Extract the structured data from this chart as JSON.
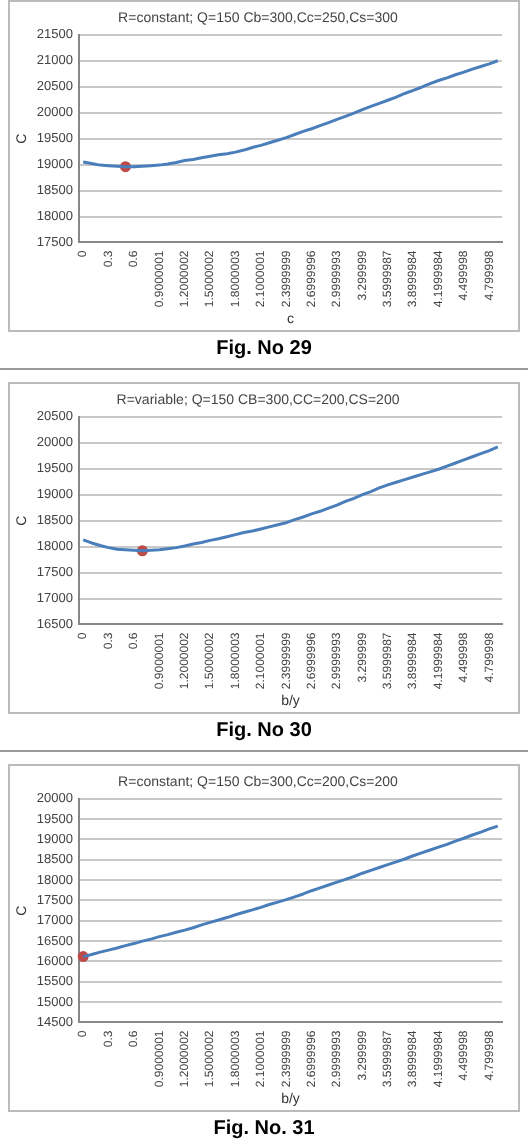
{
  "chart_data": [
    {
      "type": "line",
      "title": "R=constant; Q=150 Cb=300,Cc=250,Cs=300",
      "xlabel": "c",
      "ylabel": "C",
      "annotations": [
        "Fig. No 29"
      ],
      "categories": [
        "0",
        null,
        null,
        "0.3",
        null,
        null,
        "0.6",
        null,
        null,
        "0.9000001",
        null,
        null,
        "1.2000002",
        null,
        null,
        "1.5000002",
        null,
        null,
        "1.8000003",
        null,
        null,
        "2.1000001",
        null,
        null,
        "2.3999999",
        null,
        null,
        "2.6999996",
        null,
        null,
        "2.9999993",
        null,
        null,
        "3.299999",
        null,
        null,
        "3.5999987",
        null,
        null,
        "3.8999984",
        null,
        null,
        "4.1999984",
        null,
        null,
        "4.499998",
        null,
        null,
        "4.799998",
        null
      ],
      "series": [
        {
          "color": "#4a7ebb",
          "marker": "none",
          "values": [
            19050,
            19020,
            18990,
            18980,
            18970,
            18960,
            18960,
            18970,
            18980,
            18990,
            19010,
            19040,
            19080,
            19100,
            19130,
            19160,
            19190,
            19210,
            19240,
            19280,
            19330,
            19370,
            19420,
            19470,
            19520,
            19580,
            19640,
            19690,
            19750,
            19810,
            19870,
            19930,
            19990,
            20060,
            20120,
            20180,
            20240,
            20300,
            20370,
            20430,
            20490,
            20560,
            20620,
            20670,
            20730,
            20780,
            20840,
            20890,
            20940,
            21000
          ]
        },
        {
          "color": "#be4b48",
          "marker": "circle",
          "values": [
            null,
            null,
            null,
            null,
            null,
            18960,
            null,
            null,
            null,
            null,
            null,
            null,
            null,
            null,
            null,
            null,
            null,
            null,
            null,
            null,
            null,
            null,
            null,
            null,
            null,
            null,
            null,
            null,
            null,
            null,
            null,
            null,
            null,
            null,
            null,
            null,
            null,
            null,
            null,
            null,
            null,
            null,
            null,
            null,
            null,
            null,
            null,
            null,
            null,
            null
          ]
        }
      ],
      "ylim": [
        17500,
        21500
      ],
      "yticks": [
        17500,
        18000,
        18500,
        19000,
        19500,
        20000,
        20500,
        21000,
        21500
      ],
      "grid": "y",
      "legend": false
    },
    {
      "type": "line",
      "title": "R=variable; Q=150 CB=300,CC=200,CS=200",
      "xlabel": "b/y",
      "ylabel": "C",
      "annotations": [
        "Fig. No 30"
      ],
      "categories": [
        "0",
        null,
        null,
        "0.3",
        null,
        null,
        "0.6",
        null,
        null,
        "0.9000001",
        null,
        null,
        "1.2000002",
        null,
        null,
        "1.5000002",
        null,
        null,
        "1.8000003",
        null,
        null,
        "2.1000001",
        null,
        null,
        "2.3999999",
        null,
        null,
        "2.6999996",
        null,
        null,
        "2.9999993",
        null,
        null,
        "3.299999",
        null,
        null,
        "3.5999987",
        null,
        null,
        "3.8999984",
        null,
        null,
        "4.1999984",
        null,
        null,
        "4.499998",
        null,
        null,
        "4.799998",
        null
      ],
      "series": [
        {
          "color": "#4a7ebb",
          "marker": "none",
          "values": [
            18130,
            18070,
            18020,
            17980,
            17950,
            17940,
            17930,
            17920,
            17930,
            17940,
            17960,
            17980,
            18010,
            18050,
            18080,
            18120,
            18150,
            18190,
            18230,
            18270,
            18300,
            18340,
            18380,
            18420,
            18460,
            18520,
            18570,
            18630,
            18680,
            18740,
            18800,
            18870,
            18930,
            19000,
            19060,
            19130,
            19190,
            19240,
            19290,
            19340,
            19390,
            19440,
            19490,
            19550,
            19610,
            19670,
            19730,
            19790,
            19850,
            19920
          ]
        },
        {
          "color": "#be4b48",
          "marker": "circle",
          "values": [
            null,
            null,
            null,
            null,
            null,
            null,
            null,
            17920,
            null,
            null,
            null,
            null,
            null,
            null,
            null,
            null,
            null,
            null,
            null,
            null,
            null,
            null,
            null,
            null,
            null,
            null,
            null,
            null,
            null,
            null,
            null,
            null,
            null,
            null,
            null,
            null,
            null,
            null,
            null,
            null,
            null,
            null,
            null,
            null,
            null,
            null,
            null,
            null,
            null,
            null
          ]
        }
      ],
      "ylim": [
        16500,
        20500
      ],
      "yticks": [
        16500,
        17000,
        17500,
        18000,
        18500,
        19000,
        19500,
        20000,
        20500
      ],
      "grid": "y",
      "legend": false
    },
    {
      "type": "line",
      "title": "R=constant; Q=150 Cb=300,Cc=200,Cs=200",
      "xlabel": "b/y",
      "ylabel": "C",
      "annotations": [
        "Fig. No. 31"
      ],
      "categories": [
        "0",
        null,
        null,
        "0.3",
        null,
        null,
        "0.6",
        null,
        null,
        "0.9000001",
        null,
        null,
        "1.2000002",
        null,
        null,
        "1.5000002",
        null,
        null,
        "1.8000003",
        null,
        null,
        "2.1000001",
        null,
        null,
        "2.3999999",
        null,
        null,
        "2.6999996",
        null,
        null,
        "2.9999993",
        null,
        null,
        "3.299999",
        null,
        null,
        "3.5999987",
        null,
        null,
        "3.8999984",
        null,
        null,
        "4.1999984",
        null,
        null,
        "4.499998",
        null,
        null,
        "4.799998",
        null
      ],
      "series": [
        {
          "color": "#4a7ebb",
          "marker": "none",
          "values": [
            16120,
            16170,
            16230,
            16280,
            16330,
            16390,
            16440,
            16500,
            16550,
            16610,
            16660,
            16720,
            16770,
            16830,
            16900,
            16960,
            17020,
            17080,
            17150,
            17210,
            17270,
            17330,
            17400,
            17460,
            17520,
            17590,
            17660,
            17740,
            17810,
            17880,
            17950,
            18020,
            18090,
            18170,
            18240,
            18310,
            18380,
            18450,
            18520,
            18600,
            18670,
            18740,
            18810,
            18880,
            18960,
            19030,
            19110,
            19180,
            19260,
            19330
          ]
        },
        {
          "color": "#be4b48",
          "marker": "circle",
          "values": [
            16120,
            null,
            null,
            null,
            null,
            null,
            null,
            null,
            null,
            null,
            null,
            null,
            null,
            null,
            null,
            null,
            null,
            null,
            null,
            null,
            null,
            null,
            null,
            null,
            null,
            null,
            null,
            null,
            null,
            null,
            null,
            null,
            null,
            null,
            null,
            null,
            null,
            null,
            null,
            null,
            null,
            null,
            null,
            null,
            null,
            null,
            null,
            null,
            null,
            null
          ]
        }
      ],
      "ylim": [
        14500,
        20000
      ],
      "yticks": [
        14500,
        15000,
        15500,
        16000,
        16500,
        17000,
        17500,
        18000,
        18500,
        19000,
        19500,
        20000
      ],
      "grid": "y",
      "legend": false
    }
  ]
}
